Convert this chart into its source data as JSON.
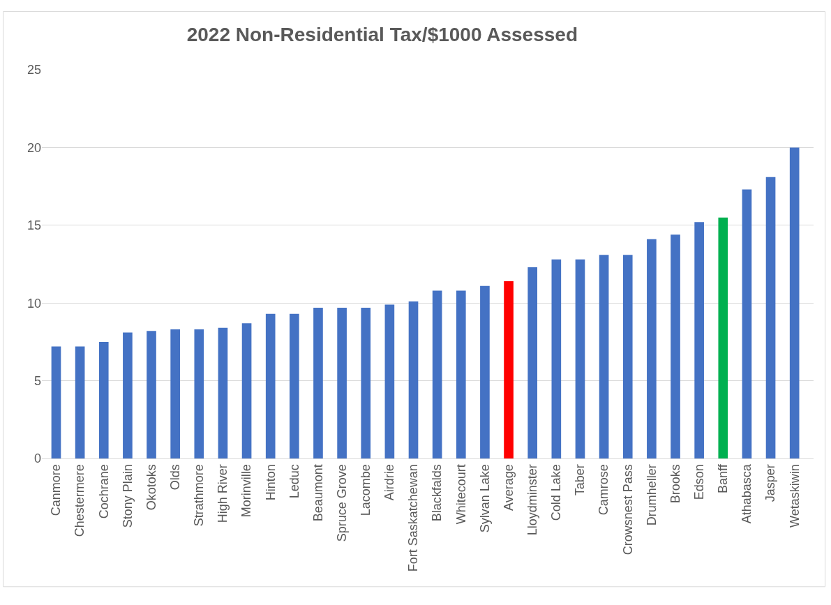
{
  "chart_data": {
    "type": "bar",
    "title": "2022 Non-Residential Tax/$1000 Assessed",
    "categories": [
      "Canmore",
      "Chestermere",
      "Cochrane",
      "Stony Plain",
      "Okotoks",
      "Olds",
      "Strathmore",
      "High River",
      "Morinville",
      "Hinton",
      "Leduc",
      "Beaumont",
      "Spruce Grove",
      "Lacombe",
      "Airdrie",
      "Fort Saskatchewan",
      "Blackfalds",
      "Whitecourt",
      "Sylvan Lake",
      "Average",
      "Lloydminster",
      "Cold Lake",
      "Taber",
      "Camrose",
      "Crowsnest Pass",
      "Drumheller",
      "Brooks",
      "Edson",
      "Banff",
      "Athabasca",
      "Jasper",
      "Wetaskiwin"
    ],
    "values": [
      7.2,
      7.2,
      7.5,
      8.1,
      8.2,
      8.3,
      8.3,
      8.4,
      8.7,
      9.3,
      9.3,
      9.7,
      9.7,
      9.7,
      9.9,
      10.1,
      10.8,
      10.8,
      11.1,
      11.4,
      12.3,
      12.8,
      12.8,
      13.1,
      13.1,
      14.1,
      14.4,
      15.2,
      15.5,
      17.3,
      18.1,
      20.0
    ],
    "colors": [
      "#4472c4",
      "#4472c4",
      "#4472c4",
      "#4472c4",
      "#4472c4",
      "#4472c4",
      "#4472c4",
      "#4472c4",
      "#4472c4",
      "#4472c4",
      "#4472c4",
      "#4472c4",
      "#4472c4",
      "#4472c4",
      "#4472c4",
      "#4472c4",
      "#4472c4",
      "#4472c4",
      "#4472c4",
      "#ff0000",
      "#4472c4",
      "#4472c4",
      "#4472c4",
      "#4472c4",
      "#4472c4",
      "#4472c4",
      "#4472c4",
      "#4472c4",
      "#00b050",
      "#4472c4",
      "#4472c4",
      "#4472c4"
    ],
    "ylim": [
      0,
      25
    ],
    "yticks": [
      0,
      5,
      10,
      15,
      20,
      25
    ],
    "grid": "y"
  }
}
